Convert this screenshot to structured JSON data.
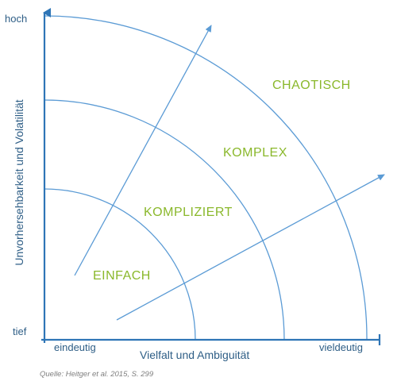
{
  "axes": {
    "y_title": "Unvorhersehbarkeit und Volatilität",
    "y_high": "hoch",
    "y_low": "tief",
    "x_title": "Vielfalt und Ambiguität",
    "x_low": "eindeutig",
    "x_high": "vieldeutig"
  },
  "zones": [
    "EINFACH",
    "KOMPLIZIERT",
    "KOMPLEX",
    "CHAOTISCH"
  ],
  "source": "Quelle: Heitger et al. 2015, S. 299",
  "colors": {
    "line": "#5b9bd5",
    "axis": "#2e75b6",
    "zone_text": "#8ab82b",
    "axis_text": "#2e5e86"
  }
}
